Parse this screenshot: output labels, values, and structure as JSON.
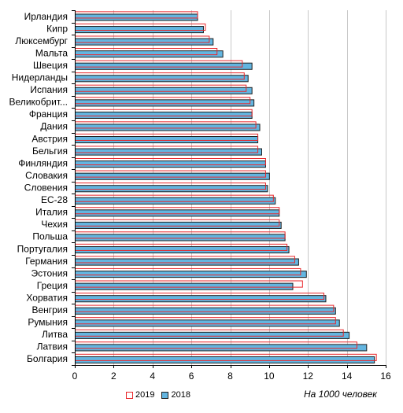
{
  "chart_data": {
    "type": "bar",
    "orientation": "horizontal",
    "categories": [
      "Ирландия",
      "Кипр",
      "Люксембург",
      "Мальта",
      "Швеция",
      "Нидерланды",
      "Испания",
      "Великобрит...",
      "Франция",
      "Дания",
      "Австрия",
      "Бельгия",
      "Финляндия",
      "Словакия",
      "Словения",
      "ЕС-28",
      "Италия",
      "Чехия",
      "Польша",
      "Португалия",
      "Германия",
      "Эстония",
      "Греция",
      "Хорватия",
      "Венгрия",
      "Румыния",
      "Литва",
      "Латвия",
      "Болгария"
    ],
    "series": [
      {
        "name": "2019",
        "color": "#e8262a",
        "fill": "#ffffff",
        "values": [
          6.3,
          6.7,
          6.9,
          7.3,
          8.6,
          8.7,
          8.8,
          9.0,
          9.1,
          9.3,
          9.4,
          9.4,
          9.8,
          9.8,
          9.8,
          10.2,
          10.5,
          10.5,
          10.8,
          10.9,
          11.3,
          11.6,
          11.7,
          12.8,
          13.3,
          13.4,
          13.8,
          14.5,
          15.5
        ]
      },
      {
        "name": "2018",
        "color": "#1f1f1f",
        "fill": "#63b5e0",
        "values": [
          6.3,
          6.6,
          7.1,
          7.6,
          9.1,
          8.9,
          9.1,
          9.2,
          9.1,
          9.5,
          9.4,
          9.6,
          9.8,
          10.0,
          9.9,
          10.3,
          10.5,
          10.6,
          10.8,
          11.0,
          11.5,
          11.9,
          11.2,
          12.9,
          13.4,
          13.6,
          14.1,
          15.0,
          15.4
        ]
      }
    ],
    "xlim": [
      0,
      16
    ],
    "xticks": [
      "0",
      "2",
      "4",
      "6",
      "8",
      "10",
      "12",
      "14",
      "16"
    ],
    "grid": true,
    "legend_position": "bottom-left"
  },
  "legend": {
    "label_2019": "2019",
    "label_2018": "2018"
  },
  "unit_note": "На 1000 человек"
}
